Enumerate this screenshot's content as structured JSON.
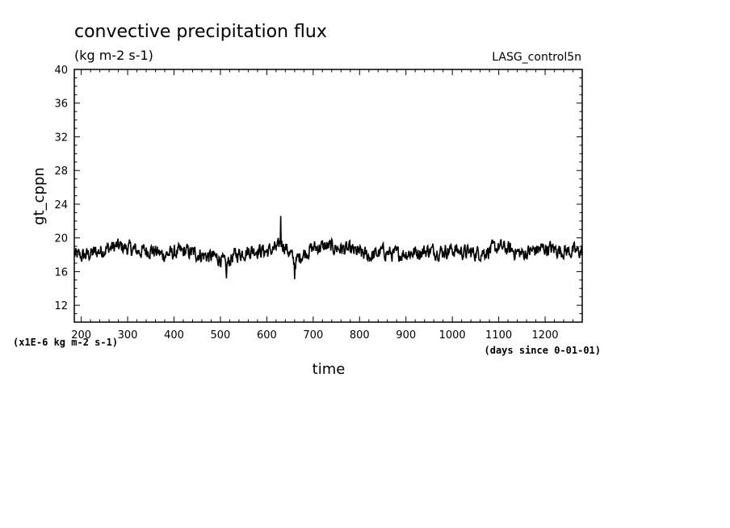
{
  "chart_data": {
    "type": "line",
    "title": "convective precipitation flux",
    "subtitle": "(kg m-2 s-1)",
    "experiment_label": "LASG_control5n",
    "xlabel": "time",
    "x_units": "(days since 0-01-01)",
    "ylabel": "gt_cppn",
    "y_multiplier_label": "(x1E-6 kg m-2 s-1)",
    "xlim": [
      185,
      1280
    ],
    "ylim": [
      10,
      40
    ],
    "x_ticks": [
      200,
      300,
      400,
      500,
      600,
      700,
      800,
      900,
      1000,
      1100,
      1200
    ],
    "y_ticks": [
      12,
      16,
      20,
      24,
      28,
      32,
      36,
      40
    ],
    "grid": false,
    "line_color": "#000000",
    "series": [
      {
        "x": [
          185,
          200,
          225,
          250,
          275,
          300,
          325,
          350,
          375,
          400,
          425,
          450,
          475,
          500,
          512,
          525,
          550,
          575,
          600,
          625,
          630,
          650,
          660,
          675,
          700,
          725,
          750,
          775,
          800,
          825,
          850,
          875,
          900,
          925,
          950,
          975,
          1000,
          1025,
          1050,
          1075,
          1100,
          1125,
          1150,
          1175,
          1200,
          1225,
          1250,
          1280
        ],
        "y": [
          18.0,
          17.8,
          18.2,
          18.6,
          19.0,
          18.8,
          18.4,
          18.6,
          18.0,
          18.2,
          18.4,
          18.1,
          17.8,
          17.6,
          16.6,
          17.8,
          18.3,
          18.6,
          18.4,
          18.8,
          19.6,
          18.2,
          17.0,
          18.0,
          18.8,
          19.0,
          18.8,
          18.6,
          18.2,
          17.8,
          18.4,
          18.0,
          18.2,
          18.3,
          18.5,
          18.4,
          18.6,
          18.3,
          18.2,
          18.4,
          18.9,
          18.6,
          18.1,
          18.5,
          18.8,
          18.6,
          18.4,
          18.4
        ],
        "noise_amplitude": 1.4
      }
    ]
  }
}
